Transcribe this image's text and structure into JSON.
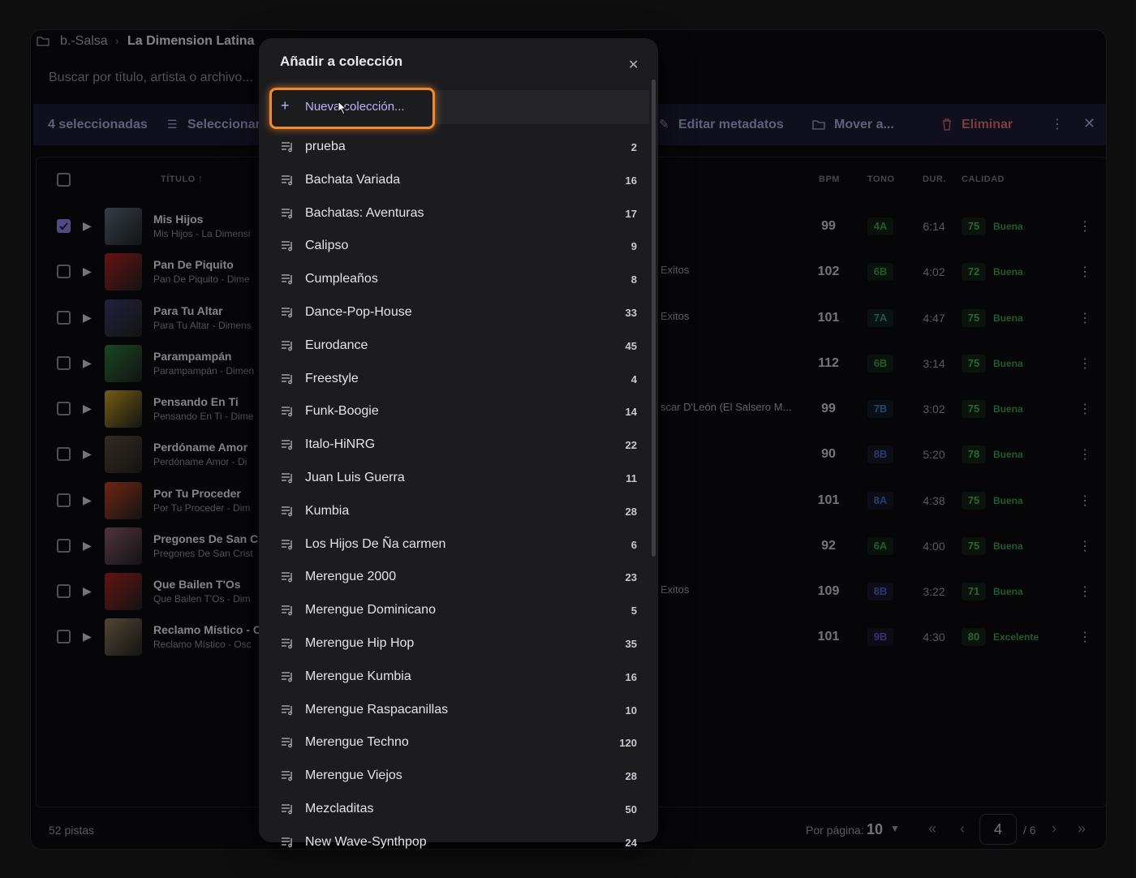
{
  "breadcrumb": [
    "b.-Salsa",
    "La Dimension Latina"
  ],
  "search_placeholder": "Buscar por título, artista o archivo...",
  "selection_bar": {
    "count": "4 seleccionadas",
    "select": "Seleccionar",
    "edit": "Editar metadatos",
    "move": "Mover a...",
    "delete": "Eliminar"
  },
  "table": {
    "headers": [
      "TÍTULO",
      "BPM",
      "TONO",
      "DUR.",
      "CALIDAD"
    ],
    "rows": [
      {
        "title": "Mis Hijos",
        "subtitle": "Mis Hijos - La Dimensi",
        "album": "",
        "bpm": 99,
        "key": "4A",
        "duration": "6:14",
        "quality": 75,
        "quality_label": "Buena",
        "checked": true
      },
      {
        "title": "Pan De Piquito",
        "subtitle": "Pan De Piquito - Dime",
        "album": "Exitos",
        "bpm": 102,
        "key": "6B",
        "duration": "4:02",
        "quality": 72,
        "quality_label": "Buena",
        "checked": false
      },
      {
        "title": "Para Tu Altar",
        "subtitle": "Para Tu Altar - Dimens",
        "album": "Exitos",
        "bpm": 101,
        "key": "7A",
        "duration": "4:47",
        "quality": 75,
        "quality_label": "Buena",
        "checked": false
      },
      {
        "title": "Parampampán",
        "subtitle": "Parampampán - Dimen",
        "album": "",
        "bpm": 112,
        "key": "6B",
        "duration": "3:14",
        "quality": 75,
        "quality_label": "Buena",
        "checked": false
      },
      {
        "title": "Pensando En Ti",
        "subtitle": "Pensando En Ti - Dime",
        "album": "scar D'León (El Salsero M...",
        "bpm": 99,
        "key": "7B",
        "duration": "3:02",
        "quality": 75,
        "quality_label": "Buena",
        "checked": false
      },
      {
        "title": "Perdóname Amor",
        "subtitle": "Perdóname Amor - Di",
        "album": "",
        "bpm": 90,
        "key": "8B",
        "duration": "5:20",
        "quality": 78,
        "quality_label": "Buena",
        "checked": false
      },
      {
        "title": "Por Tu Proceder",
        "subtitle": "Por Tu Proceder - Dim",
        "album": "",
        "bpm": 101,
        "key": "8A",
        "duration": "4:38",
        "quality": 75,
        "quality_label": "Buena",
        "checked": false
      },
      {
        "title": "Pregones De San C",
        "subtitle": "Pregones De San Crist",
        "album": "",
        "bpm": 92,
        "key": "6A",
        "duration": "4:00",
        "quality": 75,
        "quality_label": "Buena",
        "checked": false
      },
      {
        "title": "Que Bailen T'Os",
        "subtitle": "Que Bailen T'Os - Dim",
        "album": "Exitos",
        "bpm": 109,
        "key": "8B",
        "duration": "3:22",
        "quality": 71,
        "quality_label": "Buena",
        "checked": false
      },
      {
        "title": "Reclamo Místico - C",
        "subtitle": "Reclamo Místico - Osc",
        "album": "",
        "bpm": 101,
        "key": "9B",
        "duration": "4:30",
        "quality": 80,
        "quality_label": "Excelente",
        "checked": false
      }
    ]
  },
  "footer": {
    "count": "52 pistas",
    "per_page_label": "Por página:",
    "per_page": 10,
    "page": 4,
    "total": "/ 6"
  },
  "modal": {
    "title": "Añadir a colección",
    "new": "Nueva colección...",
    "collections": [
      {
        "name": "prueba",
        "count": 2
      },
      {
        "name": "Bachata  Variada",
        "count": 16
      },
      {
        "name": "Bachatas: Aventuras",
        "count": 17
      },
      {
        "name": "Calipso",
        "count": 9
      },
      {
        "name": "Cumpleaños",
        "count": 8
      },
      {
        "name": "Dance-Pop-House",
        "count": 33
      },
      {
        "name": "Eurodance",
        "count": 45
      },
      {
        "name": "Freestyle",
        "count": 4
      },
      {
        "name": "Funk-Boogie",
        "count": 14
      },
      {
        "name": "Italo-HiNRG",
        "count": 22
      },
      {
        "name": "Juan Luis Guerra",
        "count": 11
      },
      {
        "name": "Kumbia",
        "count": 28
      },
      {
        "name": "Los Hijos De Ña carmen",
        "count": 6
      },
      {
        "name": "Merengue 2000",
        "count": 23
      },
      {
        "name": "Merengue Dominicano",
        "count": 5
      },
      {
        "name": "Merengue Hip Hop",
        "count": 35
      },
      {
        "name": "Merengue Kumbia",
        "count": 16
      },
      {
        "name": "Merengue Raspacanillas",
        "count": 10
      },
      {
        "name": "Merengue Techno",
        "count": 120
      },
      {
        "name": "Merengue Viejos",
        "count": 28
      },
      {
        "name": "Mezcladitas",
        "count": 50
      },
      {
        "name": "New Wave-Synthpop",
        "count": 24
      }
    ]
  }
}
